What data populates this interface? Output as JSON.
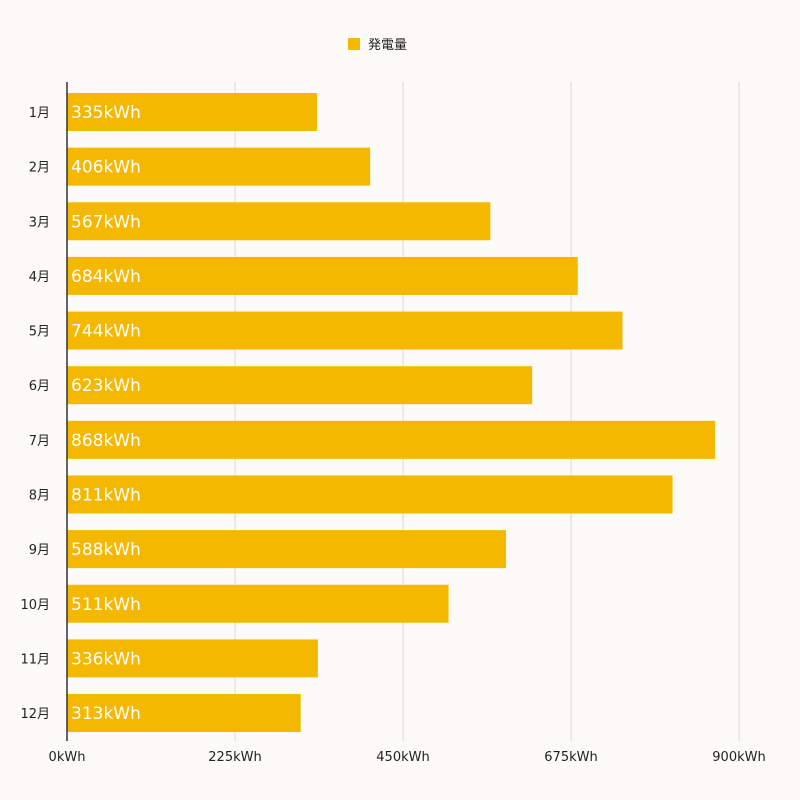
{
  "chart_data": {
    "type": "bar",
    "orientation": "horizontal",
    "title": "",
    "xlabel": "",
    "ylabel": "",
    "legend": {
      "entries": [
        "発電量"
      ],
      "placement": "top-center"
    },
    "categories": [
      "1月",
      "2月",
      "3月",
      "4月",
      "5月",
      "6月",
      "7月",
      "8月",
      "9月",
      "10月",
      "11月",
      "12月"
    ],
    "series": [
      {
        "name": "発電量",
        "color": "#f5b800",
        "values": [
          335,
          406,
          567,
          684,
          744,
          623,
          868,
          811,
          588,
          511,
          336,
          313
        ],
        "labels": [
          "335kWh",
          "406kWh",
          "567kWh",
          "684kWh",
          "744kWh",
          "623kWh",
          "868kWh",
          "811kWh",
          "588kWh",
          "511kWh",
          "336kWh",
          "313kWh"
        ]
      }
    ],
    "xlim": [
      0,
      900
    ],
    "xticks": [
      0,
      225,
      450,
      675,
      900
    ],
    "xtick_labels": [
      "0kWh",
      "225kWh",
      "450kWh",
      "675kWh",
      "900kWh"
    ],
    "grid": true
  }
}
